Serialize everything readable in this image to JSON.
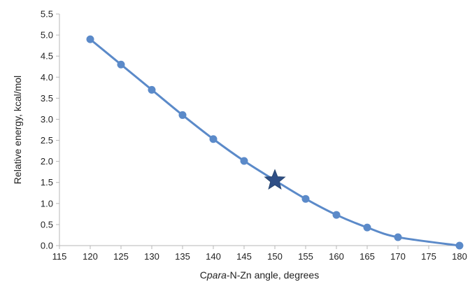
{
  "chart_data": {
    "type": "line",
    "title": "",
    "xlabel_parts": [
      {
        "text": "C",
        "italic": false
      },
      {
        "text": "para",
        "italic": true
      },
      {
        "text": "-N-Zn angle, degrees",
        "italic": false
      }
    ],
    "ylabel": "Relative energy, kcal/mol",
    "xlim": [
      115,
      180
    ],
    "ylim": [
      0.0,
      5.5
    ],
    "x_ticks": [
      "115",
      "120",
      "125",
      "130",
      "135",
      "140",
      "145",
      "150",
      "155",
      "160",
      "165",
      "170",
      "175",
      "180"
    ],
    "y_ticks": [
      "0.0",
      "0.5",
      "1.0",
      "1.5",
      "2.0",
      "2.5",
      "3.0",
      "3.5",
      "4.0",
      "4.5",
      "5.0",
      "5.5"
    ],
    "grid": false,
    "legend": "none",
    "series": [
      {
        "color": "#5b8ac9",
        "marker": "circle",
        "x": [
          120,
          125,
          130,
          135,
          140,
          145,
          150,
          155,
          160,
          165,
          170,
          180
        ],
        "y": [
          4.9,
          4.3,
          3.7,
          3.1,
          2.53,
          2.01,
          1.55,
          1.11,
          0.73,
          0.43,
          0.2,
          0.0
        ]
      }
    ],
    "highlight": {
      "x": 150,
      "y": 1.55,
      "marker": "star",
      "color": "#2f4f86"
    }
  }
}
